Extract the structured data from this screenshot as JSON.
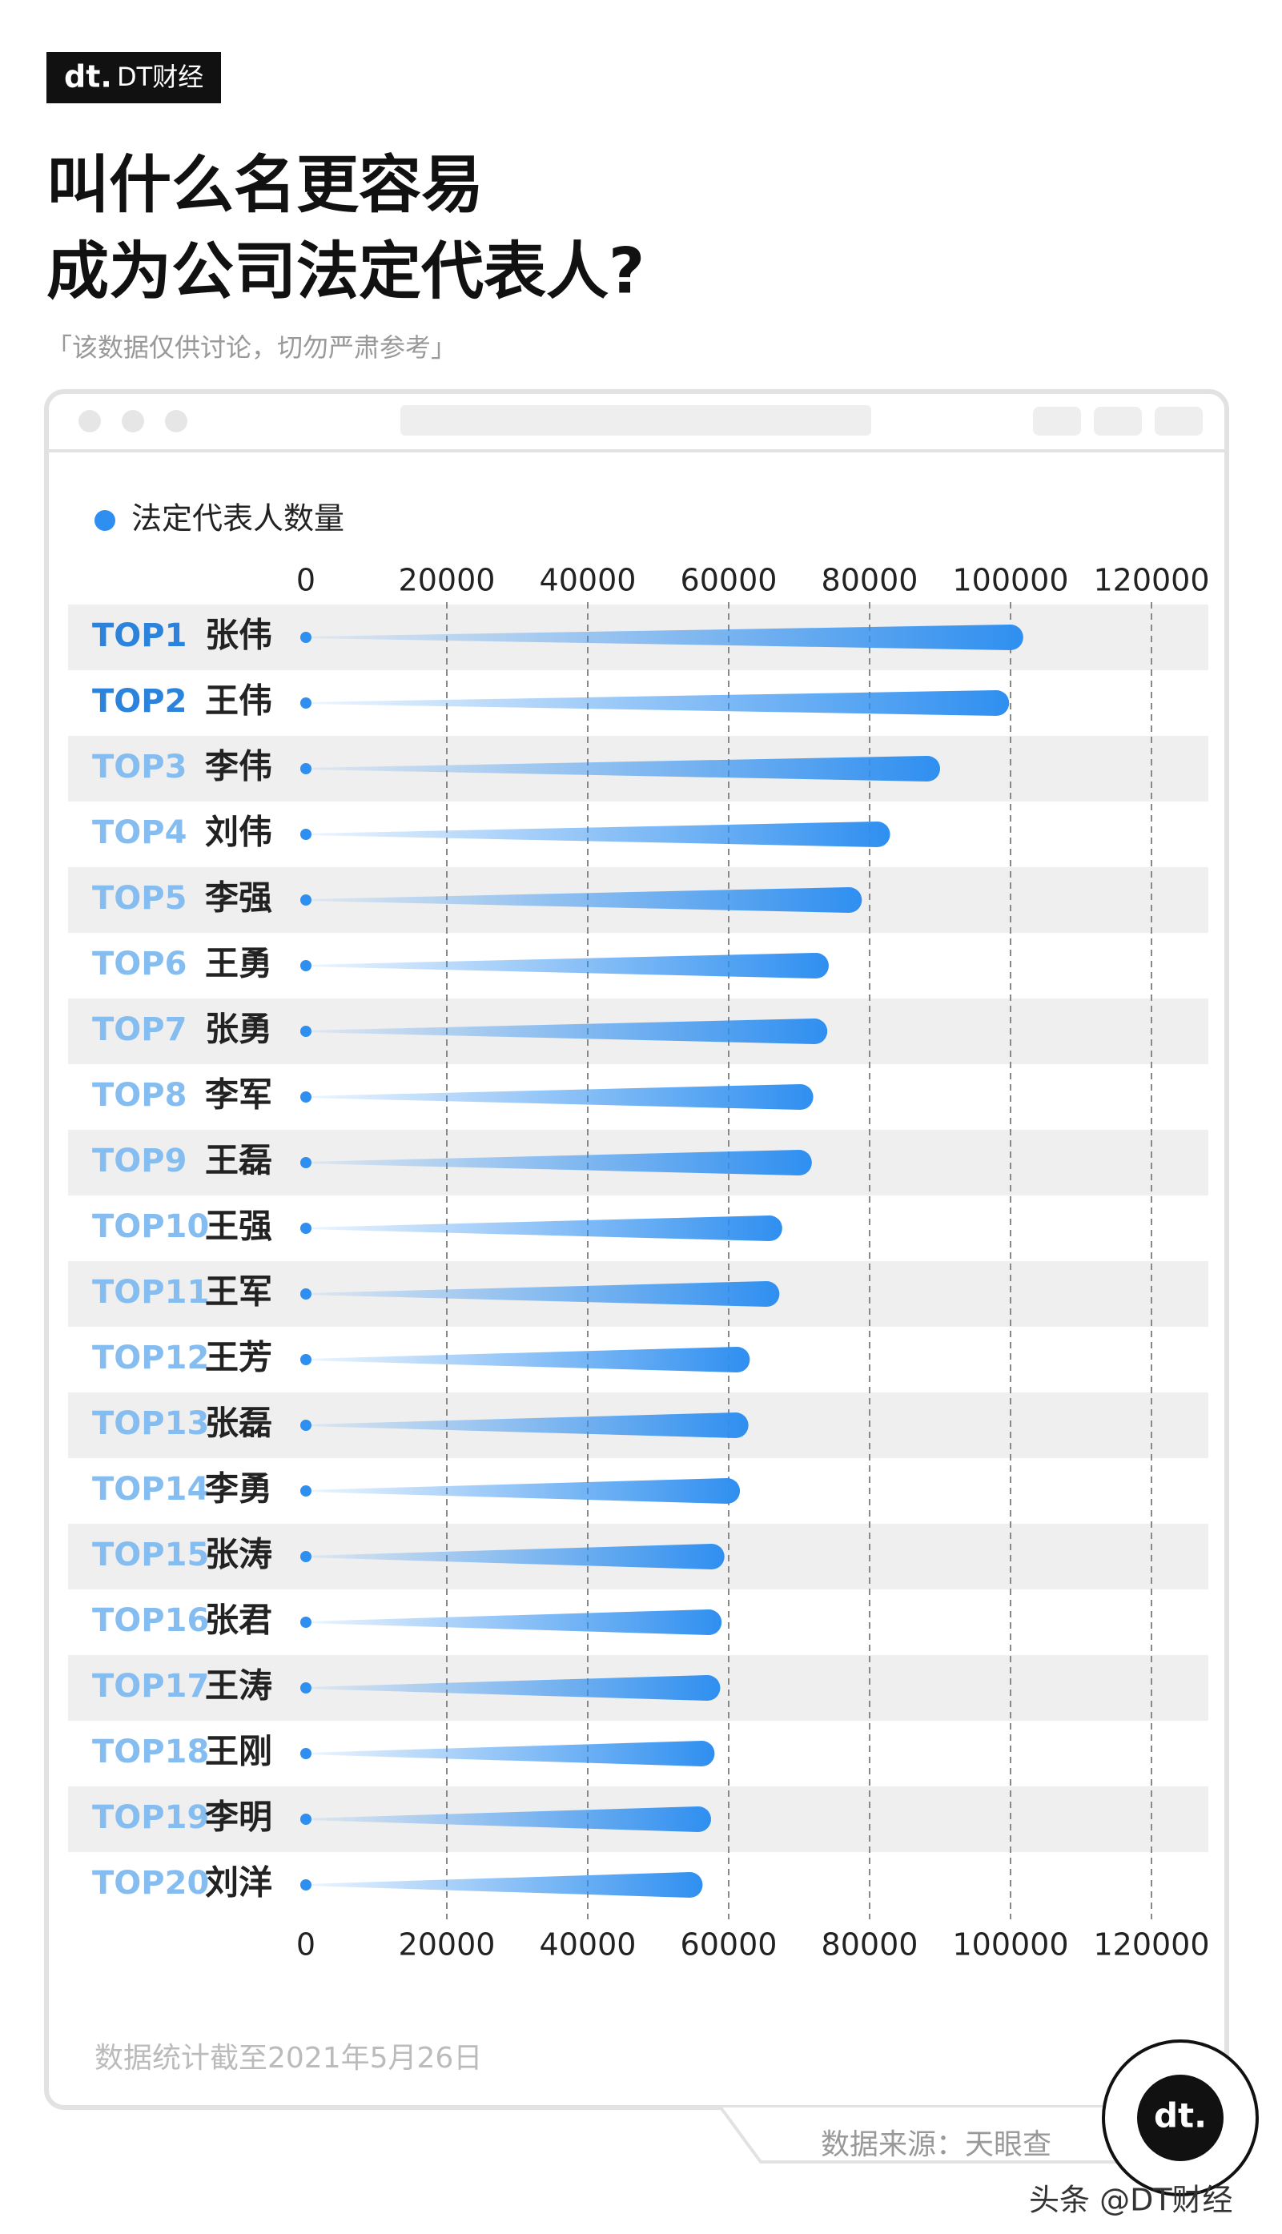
{
  "header": {
    "brand": "DT财经",
    "subtitle": "「该数据仅供讨论，切勿严肃参考」"
  },
  "chart_data": {
    "type": "bar",
    "orientation": "horizontal",
    "title": [
      "叫什么名更容易",
      "成为公司法定代表人?"
    ],
    "ranks": [
      "TOP1",
      "TOP2",
      "TOP3",
      "TOP4",
      "TOP5",
      "TOP6",
      "TOP7",
      "TOP8",
      "TOP9",
      "TOP10",
      "TOP11",
      "TOP12",
      "TOP13",
      "TOP14",
      "TOP15",
      "TOP16",
      "TOP17",
      "TOP18",
      "TOP19",
      "TOP20"
    ],
    "categories": [
      "张伟",
      "王伟",
      "李伟",
      "刘伟",
      "李强",
      "王勇",
      "张勇",
      "李军",
      "王磊",
      "王强",
      "王军",
      "王芳",
      "张磊",
      "李勇",
      "张涛",
      "张君",
      "王涛",
      "王刚",
      "李明",
      "刘洋"
    ],
    "series": [
      {
        "name": "法定代表人数量",
        "color": "#2f8ff0",
        "values": [
          101800,
          99800,
          90000,
          82900,
          78900,
          74200,
          74000,
          72000,
          71800,
          67600,
          67200,
          63000,
          62800,
          61600,
          59400,
          59000,
          58800,
          58000,
          57500,
          56300
        ]
      }
    ],
    "xlim": [
      0,
      120000
    ],
    "xticks": [
      0,
      20000,
      40000,
      60000,
      80000,
      100000,
      120000
    ],
    "grid": true,
    "note": "数据统计截至2021年5月26日",
    "source": "数据来源：天眼查"
  },
  "footer": {
    "watermark": "头条 @DT财经"
  }
}
